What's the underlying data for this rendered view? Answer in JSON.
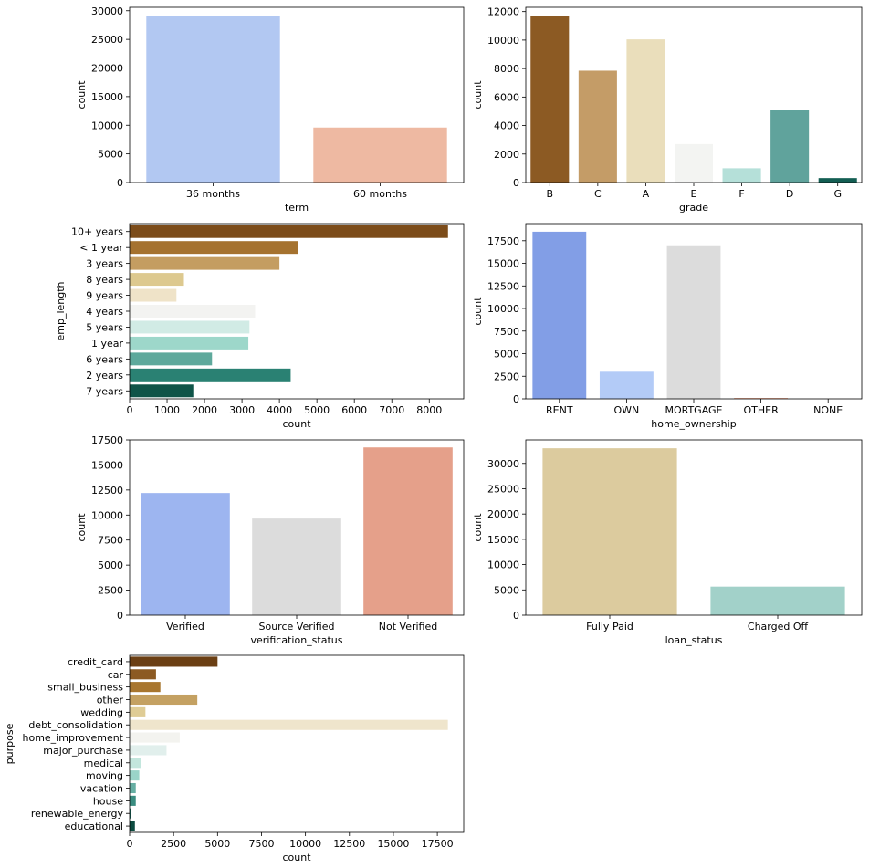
{
  "chart_data": [
    {
      "id": "term",
      "type": "bar",
      "orientation": "vertical",
      "xlabel": "term",
      "ylabel": "count",
      "categories": [
        "36 months",
        "60 months"
      ],
      "values": [
        29100,
        9600
      ],
      "colors": [
        "#b2c8f2",
        "#eeb9a2"
      ],
      "ylim": [
        0,
        30600
      ],
      "ticks": [
        0,
        5000,
        10000,
        15000,
        20000,
        25000,
        30000
      ]
    },
    {
      "id": "grade",
      "type": "bar",
      "orientation": "vertical",
      "xlabel": "grade",
      "ylabel": "count",
      "categories": [
        "B",
        "C",
        "A",
        "E",
        "F",
        "D",
        "G"
      ],
      "values": [
        11700,
        7850,
        10050,
        2700,
        1000,
        5100,
        310
      ],
      "colors": [
        "#8c5a23",
        "#c49c67",
        "#eadebb",
        "#f3f4f2",
        "#b5e0d9",
        "#60a39c",
        "#135e53"
      ],
      "ylim": [
        0,
        12300
      ],
      "ticks": [
        0,
        2000,
        4000,
        6000,
        8000,
        10000,
        12000
      ]
    },
    {
      "id": "emp_length",
      "type": "bar",
      "orientation": "horizontal",
      "xlabel": "count",
      "ylabel": "emp_length",
      "categories": [
        "10+ years",
        "< 1 year",
        "3 years",
        "8 years",
        "9 years",
        "4 years",
        "5 years",
        "1 year",
        "6 years",
        "2 years",
        "7 years"
      ],
      "values": [
        8500,
        4500,
        4000,
        1450,
        1250,
        3350,
        3200,
        3170,
        2200,
        4300,
        1700
      ],
      "colors": [
        "#7c4c1a",
        "#a5722f",
        "#c49d61",
        "#ddc98f",
        "#efe3c8",
        "#f3f3f1",
        "#d1ebe5",
        "#9dd7ca",
        "#5ea99c",
        "#2a8173",
        "#0f5448"
      ],
      "xlim": [
        0,
        8920
      ],
      "ticks": [
        0,
        1000,
        2000,
        3000,
        4000,
        5000,
        6000,
        7000,
        8000
      ]
    },
    {
      "id": "home_ownership",
      "type": "bar",
      "orientation": "vertical",
      "xlabel": "home_ownership",
      "ylabel": "count",
      "categories": [
        "RENT",
        "OWN",
        "MORTGAGE",
        "OTHER",
        "NONE"
      ],
      "values": [
        18500,
        3000,
        17000,
        100,
        5
      ],
      "colors": [
        "#829ee6",
        "#b3cbf7",
        "#dcdcdc",
        "#f3b49b",
        "#d97a5c"
      ],
      "ylim": [
        0,
        19400
      ],
      "ticks": [
        0,
        2500,
        5000,
        7500,
        10000,
        12500,
        15000,
        17500
      ]
    },
    {
      "id": "verification_status",
      "type": "bar",
      "orientation": "vertical",
      "xlabel": "verification_status",
      "ylabel": "count",
      "categories": [
        "Verified",
        "Source Verified",
        "Not Verified"
      ],
      "values": [
        12200,
        9650,
        16750
      ],
      "colors": [
        "#9db5f0",
        "#dcdcdc",
        "#e5a08a"
      ],
      "ylim": [
        0,
        17500
      ],
      "ticks": [
        0,
        2500,
        5000,
        7500,
        10000,
        12500,
        15000,
        17500
      ]
    },
    {
      "id": "loan_status",
      "type": "bar",
      "orientation": "vertical",
      "xlabel": "loan_status",
      "ylabel": "count",
      "categories": [
        "Fully Paid",
        "Charged Off"
      ],
      "values": [
        33000,
        5650
      ],
      "colors": [
        "#dccb9e",
        "#a2d1c9"
      ],
      "ylim": [
        0,
        34650
      ],
      "ticks": [
        0,
        5000,
        10000,
        15000,
        20000,
        25000,
        30000
      ]
    },
    {
      "id": "purpose",
      "type": "bar",
      "orientation": "horizontal",
      "xlabel": "count",
      "ylabel": "purpose",
      "categories": [
        "credit_card",
        "car",
        "small_business",
        "other",
        "wedding",
        "debt_consolidation",
        "home_improvement",
        "major_purchase",
        "medical",
        "moving",
        "vacation",
        "house",
        "renewable_energy",
        "educational"
      ],
      "values": [
        5000,
        1500,
        1750,
        3850,
        900,
        18100,
        2850,
        2100,
        650,
        550,
        350,
        350,
        100,
        300
      ],
      "colors": [
        "#6b3f14",
        "#8c5a23",
        "#a8762f",
        "#c4a162",
        "#dfcc95",
        "#efe5cc",
        "#f3f3ef",
        "#e1efec",
        "#c3e6dd",
        "#9ad4c8",
        "#66aea3",
        "#3a8c80",
        "#1c6e62",
        "#0c4b40"
      ],
      "xlim": [
        0,
        19000
      ],
      "ticks": [
        0,
        2500,
        5000,
        7500,
        10000,
        12500,
        15000,
        17500
      ]
    }
  ]
}
